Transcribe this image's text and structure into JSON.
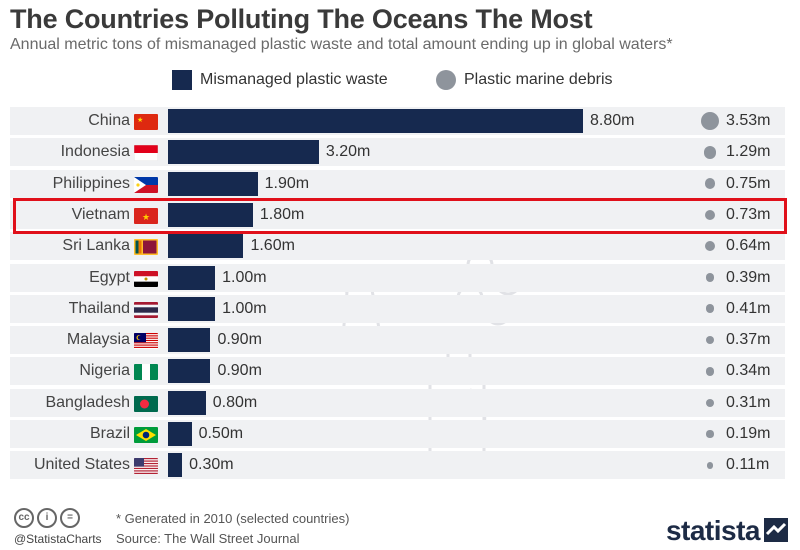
{
  "title": "The Countries Polluting The Oceans The Most",
  "subtitle": "Annual metric tons of mismanaged plastic waste and total amount ending up in global waters*",
  "legend": {
    "waste_label": "Mismanaged plastic waste",
    "debris_label": "Plastic marine debris"
  },
  "footer": {
    "note": "* Generated in 2010 (selected countries)",
    "source": "Source: The Wall Street Journal",
    "handle": "@StatistaCharts",
    "brand": "statista"
  },
  "colors": {
    "bar": "#16294f",
    "dot": "#8e949c",
    "highlight": "#e0101a",
    "row_bg": "#f0f1f3"
  },
  "chart_data": {
    "type": "bar",
    "orientation": "horizontal",
    "title": "The Countries Polluting The Oceans The Most",
    "subtitle": "Annual metric tons of mismanaged plastic waste and total amount ending up in global waters*",
    "categories": [
      "China",
      "Indonesia",
      "Philippines",
      "Vietnam",
      "Sri Lanka",
      "Egypt",
      "Thailand",
      "Malaysia",
      "Nigeria",
      "Bangladesh",
      "Brazil",
      "United States"
    ],
    "series": [
      {
        "name": "Mismanaged plastic waste",
        "values": [
          8.8,
          3.2,
          1.9,
          1.8,
          1.6,
          1.0,
          1.0,
          0.9,
          0.9,
          0.8,
          0.5,
          0.3
        ],
        "labels": [
          "8.80m",
          "3.20m",
          "1.90m",
          "1.80m",
          "1.60m",
          "1.00m",
          "1.00m",
          "0.90m",
          "0.90m",
          "0.80m",
          "0.50m",
          "0.30m"
        ]
      },
      {
        "name": "Plastic marine debris",
        "values": [
          3.53,
          1.29,
          0.75,
          0.73,
          0.64,
          0.39,
          0.41,
          0.37,
          0.34,
          0.31,
          0.19,
          0.11
        ],
        "labels": [
          "3.53m",
          "1.29m",
          "0.75m",
          "0.73m",
          "0.64m",
          "0.39m",
          "0.41m",
          "0.37m",
          "0.34m",
          "0.31m",
          "0.19m",
          "0.11m"
        ]
      }
    ],
    "highlighted_category": "Vietnam",
    "flags": [
      "china-flag",
      "indonesia-flag",
      "philippines-flag",
      "vietnam-flag",
      "sri-lanka-flag",
      "egypt-flag",
      "thailand-flag",
      "malaysia-flag",
      "nigeria-flag",
      "bangladesh-flag",
      "brazil-flag",
      "united-states-flag"
    ]
  }
}
